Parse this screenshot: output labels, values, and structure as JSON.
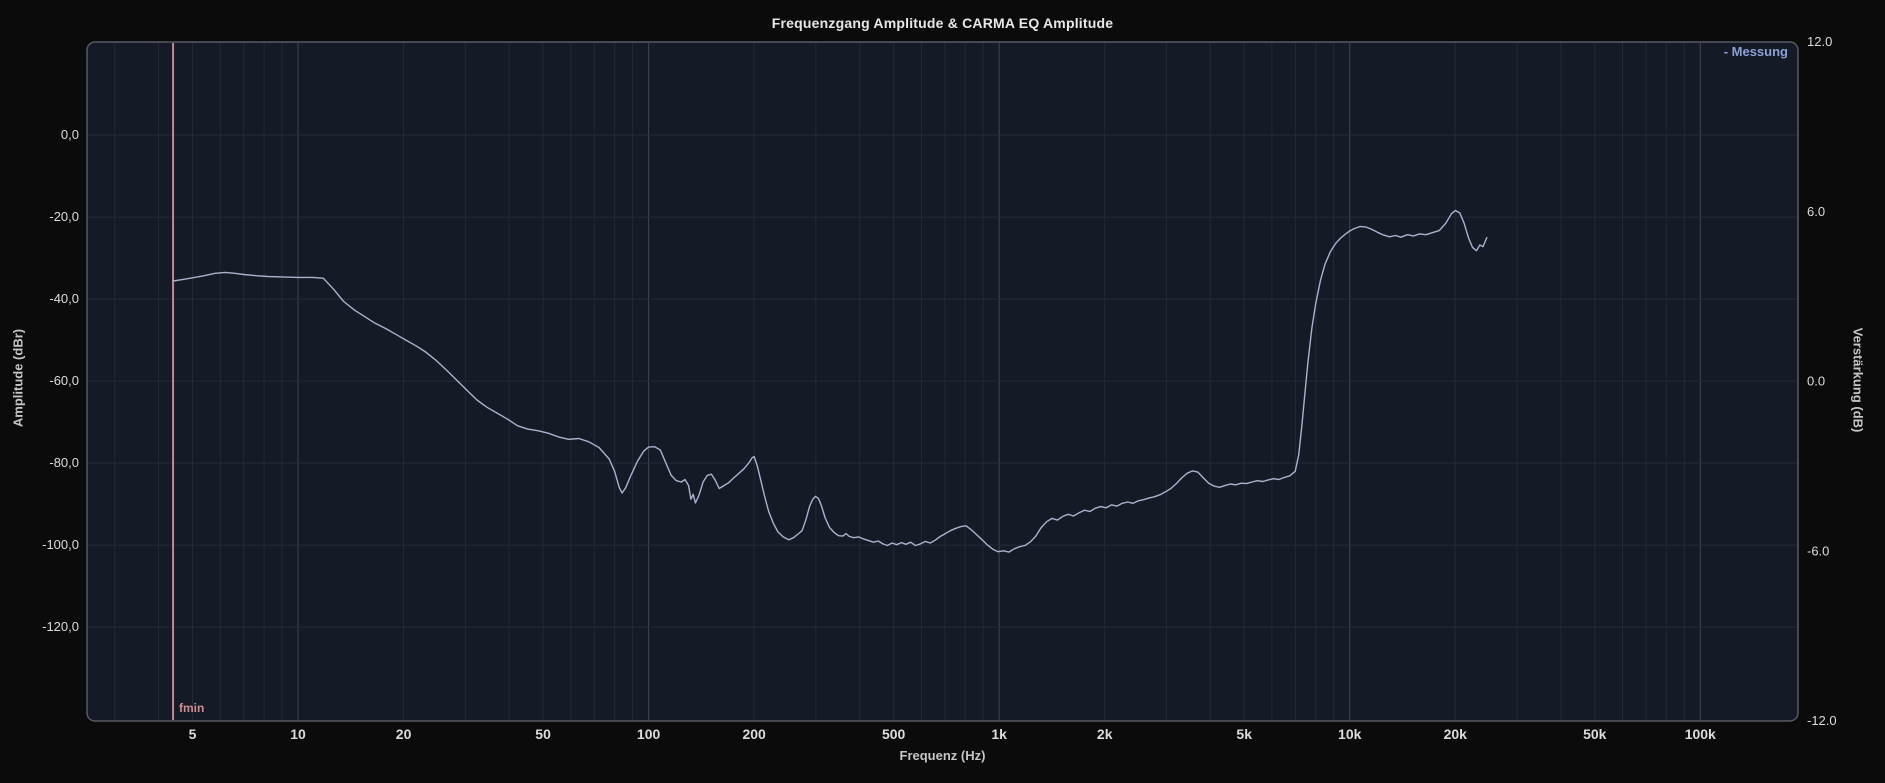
{
  "window": {
    "background": "#0b0b0b"
  },
  "title": "Frequenzgang Amplitude & CARMA EQ Amplitude",
  "legend": {
    "label": "- Messung",
    "color": "#8ca0d4"
  },
  "marker": {
    "label": "fmin",
    "freq_hz": 4.4,
    "color": "#cf8e96"
  },
  "colors": {
    "plot_bg": "#141a26",
    "grid_minor": "#222a38",
    "grid_major": "#3e4554",
    "grid_horizontal": "#242c3b",
    "frame": "#565b64",
    "curve": "#a9b3cf",
    "tick_text": "#dcdcdc",
    "title_text": "#e8e8e8",
    "axis_title_text": "#c6c6c6"
  },
  "axes": {
    "x": {
      "title": "Frequenz (Hz)",
      "scale": "log",
      "min_hz": 2.5,
      "max_hz": 190000,
      "tick_labels": [
        "5",
        "10",
        "20",
        "50",
        "100",
        "200",
        "500",
        "1k",
        "2k",
        "5k",
        "10k",
        "20k",
        "50k",
        "100k"
      ],
      "tick_values_hz": [
        5,
        10,
        20,
        50,
        100,
        200,
        500,
        1000,
        2000,
        5000,
        10000,
        20000,
        50000,
        100000
      ]
    },
    "y_left": {
      "title": "Amplitude (dBr)",
      "top_value": 22.7,
      "bottom_value": -142.9,
      "tick_labels": [
        "0,0",
        "-20,0",
        "-40,0",
        "-60,0",
        "-80,0",
        "-100,0",
        "-120,0"
      ],
      "tick_values": [
        0,
        -20,
        -40,
        -60,
        -80,
        -100,
        -120
      ]
    },
    "y_right": {
      "title": "Verstärkung (dB)",
      "top_value": 12.0,
      "bottom_value": -12.0,
      "tick_labels": [
        "12.0",
        "6.0",
        "0.0",
        "-6.0",
        "-12.0"
      ],
      "tick_values": [
        12,
        6,
        0,
        -6,
        -12
      ]
    }
  },
  "chart_data": {
    "type": "line",
    "title": "Frequenzgang Amplitude & CARMA EQ Amplitude",
    "xlabel": "Frequenz (Hz)",
    "ylabel_left": "Amplitude (dBr)",
    "ylabel_right": "Verstärkung (dB)",
    "x_scale": "log",
    "x_range_hz": [
      2.5,
      190000
    ],
    "y_left_range": [
      22.7,
      -142.9
    ],
    "y_right_range": [
      12,
      -12
    ],
    "grid": true,
    "legend_position": "top-right",
    "annotations": [
      {
        "type": "vline",
        "label": "fmin",
        "x_hz": 4.4
      }
    ],
    "series": [
      {
        "name": "Messung",
        "color": "#a9b3cf",
        "units": [
          "Hz",
          "dBr"
        ],
        "points": [
          [
            4.4,
            -35.6
          ],
          [
            4.7,
            -35.2
          ],
          [
            5.0,
            -34.8
          ],
          [
            5.4,
            -34.3
          ],
          [
            5.8,
            -33.7
          ],
          [
            6.2,
            -33.5
          ],
          [
            6.6,
            -33.7
          ],
          [
            7.0,
            -34.0
          ],
          [
            7.6,
            -34.3
          ],
          [
            8.2,
            -34.5
          ],
          [
            9.0,
            -34.6
          ],
          [
            10.0,
            -34.7
          ],
          [
            11.0,
            -34.7
          ],
          [
            11.8,
            -34.9
          ],
          [
            12.6,
            -37.5
          ],
          [
            13.5,
            -40.6
          ],
          [
            14.5,
            -42.7
          ],
          [
            15.5,
            -44.3
          ],
          [
            16.6,
            -45.9
          ],
          [
            17.8,
            -47.2
          ],
          [
            19.0,
            -48.6
          ],
          [
            20.3,
            -50.0
          ],
          [
            21.7,
            -51.4
          ],
          [
            23.2,
            -53.0
          ],
          [
            24.8,
            -55.0
          ],
          [
            26.5,
            -57.3
          ],
          [
            28.3,
            -59.7
          ],
          [
            30.3,
            -62.2
          ],
          [
            32.4,
            -64.6
          ],
          [
            34.6,
            -66.4
          ],
          [
            37.0,
            -67.8
          ],
          [
            39.6,
            -69.3
          ],
          [
            42.3,
            -70.9
          ],
          [
            45.2,
            -71.7
          ],
          [
            48.3,
            -72.1
          ],
          [
            51.7,
            -72.7
          ],
          [
            55.3,
            -73.6
          ],
          [
            59.1,
            -74.2
          ],
          [
            63.2,
            -74.0
          ],
          [
            67.5,
            -74.8
          ],
          [
            72.2,
            -76.2
          ],
          [
            77.2,
            -79.0
          ],
          [
            80.0,
            -82.0
          ],
          [
            82.5,
            -86.0
          ],
          [
            84.0,
            -87.3
          ],
          [
            86.0,
            -86.0
          ],
          [
            89.0,
            -83.0
          ],
          [
            93.0,
            -79.5
          ],
          [
            97.0,
            -77.0
          ],
          [
            100.0,
            -76.1
          ],
          [
            104.0,
            -76.0
          ],
          [
            108.0,
            -76.8
          ],
          [
            112.0,
            -80.0
          ],
          [
            116.0,
            -83.0
          ],
          [
            120.0,
            -84.3
          ],
          [
            124.0,
            -84.6
          ],
          [
            127.0,
            -84.0
          ],
          [
            130.0,
            -85.5
          ],
          [
            132.0,
            -88.8
          ],
          [
            134.0,
            -87.6
          ],
          [
            136.0,
            -89.7
          ],
          [
            139.0,
            -88.0
          ],
          [
            143.0,
            -84.6
          ],
          [
            147.0,
            -83.0
          ],
          [
            151.0,
            -82.7
          ],
          [
            155.0,
            -84.2
          ],
          [
            159.0,
            -86.2
          ],
          [
            164.0,
            -85.5
          ],
          [
            169.0,
            -84.8
          ],
          [
            175.0,
            -83.6
          ],
          [
            181.0,
            -82.5
          ],
          [
            187.0,
            -81.4
          ],
          [
            193.0,
            -80.0
          ],
          [
            197.0,
            -78.8
          ],
          [
            200.0,
            -78.4
          ],
          [
            204.0,
            -80.6
          ],
          [
            209.0,
            -84.2
          ],
          [
            214.0,
            -87.9
          ],
          [
            220.0,
            -91.8
          ],
          [
            227.0,
            -94.7
          ],
          [
            234.0,
            -96.8
          ],
          [
            242.0,
            -98.0
          ],
          [
            251.0,
            -98.7
          ],
          [
            259.0,
            -98.2
          ],
          [
            267.0,
            -97.3
          ],
          [
            274.0,
            -96.5
          ],
          [
            281.0,
            -93.8
          ],
          [
            288.0,
            -90.5
          ],
          [
            294.0,
            -88.8
          ],
          [
            299.0,
            -88.1
          ],
          [
            305.0,
            -88.6
          ],
          [
            311.0,
            -90.4
          ],
          [
            319.0,
            -93.4
          ],
          [
            328.0,
            -95.7
          ],
          [
            338.0,
            -96.9
          ],
          [
            348.0,
            -97.7
          ],
          [
            358.0,
            -97.8
          ],
          [
            366.0,
            -97.2
          ],
          [
            374.0,
            -97.9
          ],
          [
            385.0,
            -98.2
          ],
          [
            397.0,
            -98.0
          ],
          [
            410.0,
            -98.5
          ],
          [
            424.0,
            -98.9
          ],
          [
            438.0,
            -99.3
          ],
          [
            452.0,
            -99.0
          ],
          [
            466.0,
            -99.7
          ],
          [
            480.0,
            -100.1
          ],
          [
            495.0,
            -99.5
          ],
          [
            510.0,
            -99.9
          ],
          [
            526.0,
            -99.4
          ],
          [
            542.0,
            -99.8
          ],
          [
            559.0,
            -99.3
          ],
          [
            577.0,
            -100.1
          ],
          [
            596.0,
            -99.7
          ],
          [
            616.0,
            -99.1
          ],
          [
            636.0,
            -99.5
          ],
          [
            657.0,
            -98.8
          ],
          [
            679.0,
            -97.9
          ],
          [
            702.0,
            -97.2
          ],
          [
            726.0,
            -96.5
          ],
          [
            752.0,
            -95.9
          ],
          [
            778.0,
            -95.5
          ],
          [
            805.0,
            -95.3
          ],
          [
            834.0,
            -96.3
          ],
          [
            863.0,
            -97.5
          ],
          [
            894.0,
            -98.7
          ],
          [
            926.0,
            -100.0
          ],
          [
            959.0,
            -101.0
          ],
          [
            993.0,
            -101.6
          ],
          [
            1029.0,
            -101.4
          ],
          [
            1066.0,
            -101.7
          ],
          [
            1104.0,
            -100.9
          ],
          [
            1144.0,
            -100.4
          ],
          [
            1185.0,
            -100.1
          ],
          [
            1228.0,
            -99.2
          ],
          [
            1272.0,
            -97.8
          ],
          [
            1318.0,
            -95.7
          ],
          [
            1366.0,
            -94.3
          ],
          [
            1415.0,
            -93.5
          ],
          [
            1466.0,
            -93.9
          ],
          [
            1519.0,
            -93.0
          ],
          [
            1574.0,
            -92.5
          ],
          [
            1631.0,
            -92.9
          ],
          [
            1690.0,
            -92.1
          ],
          [
            1751.0,
            -91.5
          ],
          [
            1815.0,
            -91.8
          ],
          [
            1880.0,
            -91.0
          ],
          [
            1948.0,
            -90.6
          ],
          [
            2018.0,
            -90.9
          ],
          [
            2091.0,
            -90.2
          ],
          [
            2167.0,
            -90.5
          ],
          [
            2245.0,
            -89.8
          ],
          [
            2326.0,
            -89.5
          ],
          [
            2410.0,
            -89.8
          ],
          [
            2497.0,
            -89.2
          ],
          [
            2587.0,
            -88.9
          ],
          [
            2681.0,
            -88.5
          ],
          [
            2778.0,
            -88.2
          ],
          [
            2878.0,
            -87.7
          ],
          [
            2982.0,
            -87.0
          ],
          [
            3090.0,
            -86.2
          ],
          [
            3202.0,
            -85.0
          ],
          [
            3317.0,
            -83.6
          ],
          [
            3437.0,
            -82.5
          ],
          [
            3561.0,
            -81.9
          ],
          [
            3690.0,
            -82.2
          ],
          [
            3823.0,
            -83.6
          ],
          [
            3961.0,
            -84.9
          ],
          [
            4104.0,
            -85.6
          ],
          [
            4252.0,
            -85.9
          ],
          [
            4406.0,
            -85.5
          ],
          [
            4565.0,
            -85.1
          ],
          [
            4730.0,
            -85.3
          ],
          [
            4901.0,
            -84.9
          ],
          [
            5078.0,
            -85.0
          ],
          [
            5262.0,
            -84.6
          ],
          [
            5452.0,
            -84.3
          ],
          [
            5649.0,
            -84.5
          ],
          [
            5853.0,
            -84.1
          ],
          [
            6065.0,
            -83.8
          ],
          [
            6284.0,
            -84.0
          ],
          [
            6511.0,
            -83.5
          ],
          [
            6746.0,
            -83.1
          ],
          [
            6990.0,
            -82.0
          ],
          [
            7150.0,
            -78.0
          ],
          [
            7300.0,
            -71.0
          ],
          [
            7450.0,
            -63.0
          ],
          [
            7600.0,
            -55.5
          ],
          [
            7800.0,
            -47.0
          ],
          [
            8000.0,
            -41.0
          ],
          [
            8250.0,
            -35.5
          ],
          [
            8500.0,
            -31.5
          ],
          [
            8800.0,
            -28.5
          ],
          [
            9100.0,
            -26.5
          ],
          [
            9400.0,
            -25.2
          ],
          [
            9700.0,
            -24.2
          ],
          [
            10000.0,
            -23.4
          ],
          [
            10300.0,
            -22.8
          ],
          [
            10700.0,
            -22.3
          ],
          [
            11100.0,
            -22.4
          ],
          [
            11500.0,
            -22.9
          ],
          [
            12000.0,
            -23.7
          ],
          [
            12500.0,
            -24.4
          ],
          [
            13000.0,
            -24.8
          ],
          [
            13500.0,
            -24.5
          ],
          [
            14000.0,
            -24.9
          ],
          [
            14600.0,
            -24.3
          ],
          [
            15200.0,
            -24.6
          ],
          [
            15800.0,
            -24.1
          ],
          [
            16500.0,
            -24.3
          ],
          [
            17200.0,
            -23.8
          ],
          [
            18000.0,
            -23.3
          ],
          [
            18800.0,
            -21.5
          ],
          [
            19500.0,
            -19.2
          ],
          [
            20000.0,
            -18.4
          ],
          [
            20600.0,
            -19.0
          ],
          [
            21200.0,
            -21.5
          ],
          [
            21800.0,
            -25.0
          ],
          [
            22400.0,
            -27.4
          ],
          [
            23000.0,
            -28.2
          ],
          [
            23500.0,
            -26.8
          ],
          [
            24000.0,
            -27.2
          ],
          [
            24600.0,
            -25.0
          ]
        ]
      }
    ]
  }
}
